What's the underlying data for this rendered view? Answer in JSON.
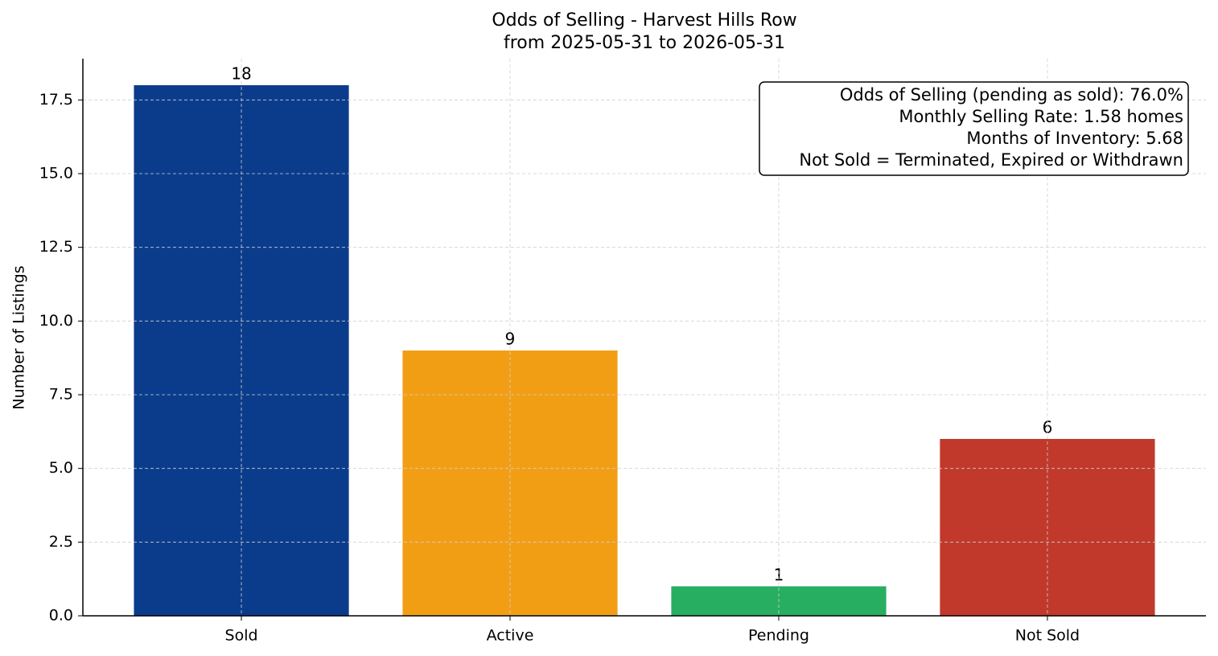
{
  "chart_data": {
    "type": "bar",
    "title": "Odds of Selling - Harvest Hills Row",
    "subtitle": "from 2025-05-31 to 2026-05-31",
    "y_label": "Number of Listings",
    "categories": [
      "Sold",
      "Active",
      "Pending",
      "Not Sold"
    ],
    "values": [
      18,
      9,
      1,
      6
    ],
    "colors": [
      "#0b3c8c",
      "#f29e15",
      "#27ae60",
      "#c0392b"
    ],
    "ylim": [
      0,
      18.9
    ],
    "yticks": [
      {
        "value": 0,
        "label": "0.0"
      },
      2.5,
      {
        "value": 5,
        "label": "5.0"
      },
      7.5,
      {
        "value": 10,
        "label": "10.0"
      },
      12.5,
      {
        "value": 15,
        "label": "15.0"
      },
      17.5
    ],
    "grid": true,
    "annotation": [
      "Odds of Selling (pending as sold): 76.0%",
      "Monthly Selling Rate: 1.58 homes",
      "Months of Inventory: 5.68",
      "Not Sold = Terminated, Expired or Withdrawn"
    ]
  }
}
